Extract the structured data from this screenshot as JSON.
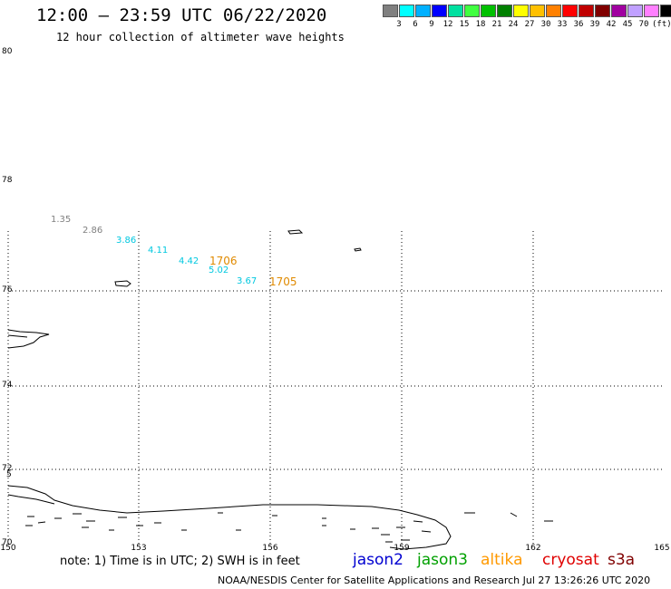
{
  "header": {
    "title": "12:00 – 23:59 UTC 06/22/2020",
    "subtitle": "12 hour collection of altimeter wave heights"
  },
  "scale": {
    "colors": [
      "#808080",
      "#00ffff",
      "#00b0ff",
      "#0000ff",
      "#00e0a0",
      "#40ff40",
      "#00c000",
      "#008000",
      "#ffff00",
      "#ffc000",
      "#ff8000",
      "#ff0000",
      "#c00000",
      "#800000",
      "#a000a0",
      "#c0a0ff",
      "#ff80ff",
      "#000000"
    ],
    "labels": [
      "3",
      "6",
      "9",
      "12",
      "15",
      "18",
      "21",
      "24",
      "27",
      "30",
      "33",
      "36",
      "39",
      "42",
      "45",
      "70"
    ],
    "unit": "(ft)"
  },
  "map": {
    "lat_labels": [
      "80",
      "78",
      "76",
      "74",
      "72",
      "70"
    ],
    "lat_extra": "5",
    "lon_labels": [
      "150",
      "153",
      "156",
      "159",
      "162",
      "165"
    ]
  },
  "observations": [
    {
      "value": "1.35",
      "color": "#808080"
    },
    {
      "value": "2.86",
      "color": "#808080"
    },
    {
      "value": "3.86",
      "color": "#00c8e0"
    },
    {
      "value": "4.11",
      "color": "#00c8e0"
    },
    {
      "value": "4.42",
      "color": "#00c8e0"
    },
    {
      "value": "5.02",
      "color": "#00c8e0"
    },
    {
      "value": "3.67",
      "color": "#00c8e0"
    }
  ],
  "times": [
    "1706",
    "1705"
  ],
  "footer": {
    "note": "note:  1) Time is in UTC;  2) SWH is in feet",
    "sats": [
      {
        "name": "jason2",
        "color": "#0000d0"
      },
      {
        "name": "jason3",
        "color": "#00a000"
      },
      {
        "name": "altika",
        "color": "#ff9900"
      },
      {
        "name": "cryosat",
        "color": "#e00000"
      },
      {
        "name": "s3a",
        "color": "#800000"
      }
    ],
    "credit": "NOAA/NESDIS Center for Satellite Applications and Research    Jul 27 13:26:26 UTC 2020"
  }
}
